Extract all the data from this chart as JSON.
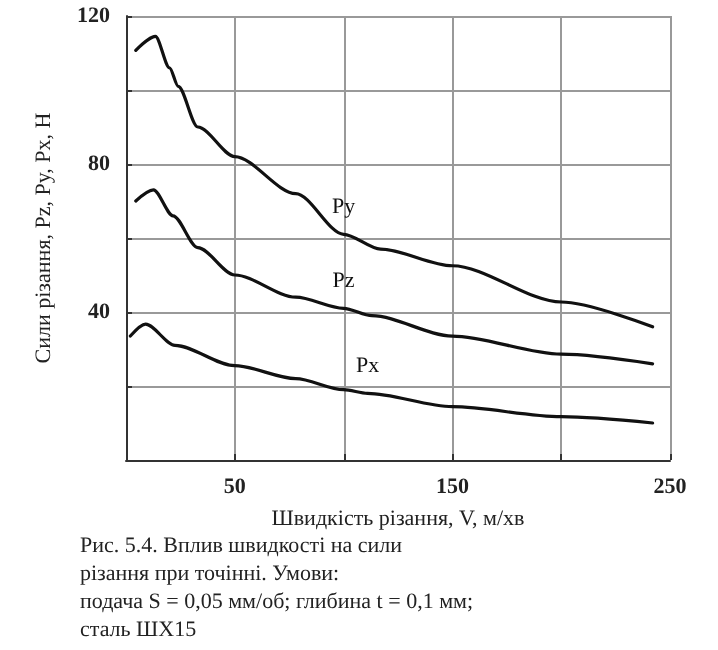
{
  "chart_data": {
    "type": "line",
    "xlabel": "Швидкість різання, V, м/хв",
    "ylabel": "Сили різання, Pz, Py, Px, Н",
    "annotations": [
      "Рис. 5.4. Вплив швидкості на сили різання при точінні. Умови: подача S = 0,05 мм/об; глибина t = 0,1 мм; сталь ШХ15"
    ],
    "series": [
      {
        "name": "Py",
        "color": "#111111",
        "x": [
          4.5,
          13.5,
          20,
          24,
          33,
          50,
          78,
          100,
          117,
          150,
          200,
          242
        ],
        "values": [
          110.7,
          114.5,
          106,
          101,
          90,
          82,
          72,
          61,
          57,
          52.5,
          42.7,
          36
        ]
      },
      {
        "name": "Pz",
        "color": "#111111",
        "x": [
          4.5,
          12.6,
          21.6,
          33,
          50,
          78,
          100,
          113,
          150,
          200,
          242
        ],
        "values": [
          70,
          73,
          66,
          57.4,
          50,
          44,
          41,
          39,
          33.5,
          28.6,
          26
        ]
      },
      {
        "name": "Px",
        "color": "#111111",
        "x": [
          2,
          9,
          22.5,
          50,
          78,
          100,
          111,
          150,
          200,
          242
        ],
        "values": [
          33.5,
          36.7,
          31,
          25.5,
          22,
          19,
          18,
          14.4,
          11.7,
          10
        ]
      }
    ],
    "xlim": [
      0,
      250
    ],
    "xticks": [
      {
        "value": 0,
        "label": null
      },
      50,
      {
        "value": 100,
        "label": null
      },
      150,
      {
        "value": 200,
        "label": null
      },
      250
    ],
    "ylim": [
      0,
      120
    ],
    "yticks": [
      {
        "value": 0,
        "label": null
      },
      {
        "value": 20,
        "label": null
      },
      40,
      {
        "value": 60,
        "label": null
      },
      80,
      {
        "value": 100,
        "label": null
      },
      120
    ],
    "grid": true,
    "legend": false,
    "marker": "none",
    "line_style": "solid"
  }
}
